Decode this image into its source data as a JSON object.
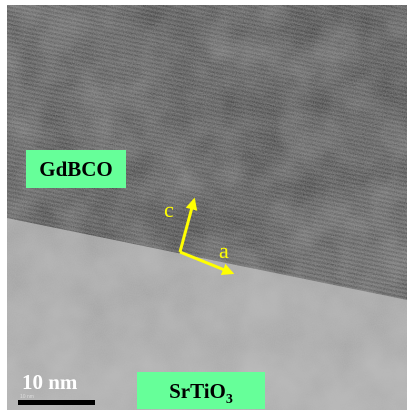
{
  "labels": {
    "film": "GdBCO",
    "substrate": {
      "base": "SrTiO",
      "subscript": "3"
    },
    "axis_c": "c",
    "axis_a": "a"
  },
  "scale_bar": {
    "label": "10 nm",
    "small_label": "10 nm"
  }
}
